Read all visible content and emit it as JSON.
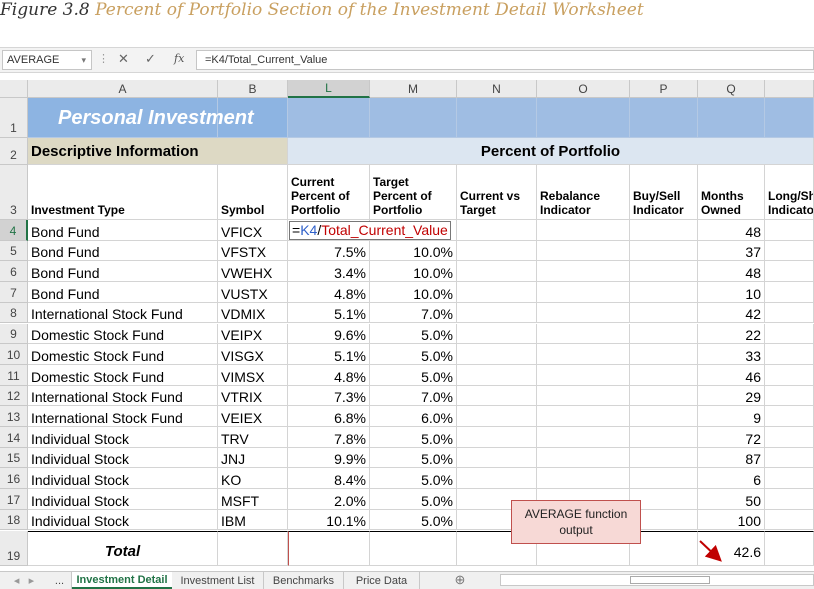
{
  "caption": {
    "label": "Figure 3.8",
    "title": "Percent of Portfolio Section of the Investment Detail Worksheet"
  },
  "formula_bar": {
    "name_box": "AVERAGE",
    "function_icon": "fx",
    "formula": "=K4/Total_Current_Value"
  },
  "columns": [
    "A",
    "B",
    "L",
    "M",
    "N",
    "O",
    "P",
    "Q"
  ],
  "row_numbers": [
    1,
    2,
    3,
    4,
    5,
    6,
    7,
    8,
    9,
    10,
    11,
    12,
    13,
    14,
    15,
    16,
    17,
    18,
    19
  ],
  "title": "Personal Investment",
  "sections": {
    "descriptive": "Descriptive Information",
    "percent": "Percent of Portfolio"
  },
  "headers": [
    "Investment Type",
    "Symbol",
    "Current Percent of Portfolio",
    "Target Percent of Portfolio",
    "Current vs Target",
    "Rebalance Indicator",
    "Buy/Sell Indicator",
    "Months Owned",
    "Long/Short Indicator"
  ],
  "rows": [
    {
      "type": "Bond Fund",
      "symbol": "VFICX",
      "formula": [
        "=",
        "K4",
        "/",
        "Total_Current_Value"
      ],
      "months": 48
    },
    {
      "type": "Bond Fund",
      "symbol": "VFSTX",
      "current": "7.5%",
      "target": "10.0%",
      "months": 37
    },
    {
      "type": "Bond Fund",
      "symbol": "VWEHX",
      "current": "3.4%",
      "target": "10.0%",
      "months": 48
    },
    {
      "type": "Bond Fund",
      "symbol": "VUSTX",
      "current": "4.8%",
      "target": "10.0%",
      "months": 10
    },
    {
      "type": "International Stock Fund",
      "symbol": "VDMIX",
      "current": "5.1%",
      "target": "7.0%",
      "months": 42
    },
    {
      "type": "Domestic Stock Fund",
      "symbol": "VEIPX",
      "current": "9.6%",
      "target": "5.0%",
      "months": 22
    },
    {
      "type": "Domestic Stock Fund",
      "symbol": "VISGX",
      "current": "5.1%",
      "target": "5.0%",
      "months": 33
    },
    {
      "type": "Domestic Stock Fund",
      "symbol": "VIMSX",
      "current": "4.8%",
      "target": "5.0%",
      "months": 46
    },
    {
      "type": "International Stock Fund",
      "symbol": "VTRIX",
      "current": "7.3%",
      "target": "7.0%",
      "months": 29
    },
    {
      "type": "International Stock Fund",
      "symbol": "VEIEX",
      "current": "6.8%",
      "target": "6.0%",
      "months": 9
    },
    {
      "type": "Individual Stock",
      "symbol": "TRV",
      "current": "7.8%",
      "target": "5.0%",
      "months": 72
    },
    {
      "type": "Individual Stock",
      "symbol": "JNJ",
      "current": "9.9%",
      "target": "5.0%",
      "months": 87
    },
    {
      "type": "Individual Stock",
      "symbol": "KO",
      "current": "8.4%",
      "target": "5.0%",
      "months": 6
    },
    {
      "type": "Individual Stock",
      "symbol": "MSFT",
      "current": "2.0%",
      "target": "5.0%",
      "months": 50
    },
    {
      "type": "Individual Stock",
      "symbol": "IBM",
      "current": "10.1%",
      "target": "5.0%",
      "months": 100
    }
  ],
  "total": {
    "label": "Total",
    "months": 42.6
  },
  "callout": "AVERAGE function output",
  "sheet_tabs": [
    "...",
    "Investment Detail",
    "Investment List",
    "Benchmarks",
    "Price Data"
  ]
}
